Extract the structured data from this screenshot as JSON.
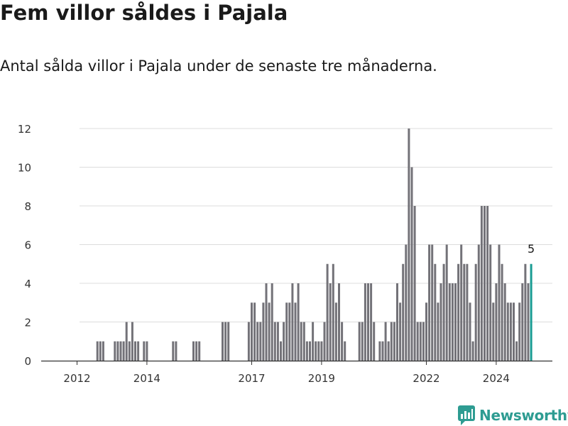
{
  "header": {
    "title": "Fem villor såldes i Pajala",
    "subtitle": "Antal sålda villor i Pajala under de senaste tre månaderna."
  },
  "brand": {
    "name": "Newsworthy",
    "color": "#2e9c92"
  },
  "chart_data": {
    "type": "bar",
    "title": "Fem villor såldes i Pajala",
    "subtitle": "Antal sålda villor i Pajala under de senaste tre månaderna.",
    "xlabel": "",
    "ylabel": "",
    "ylim": [
      0,
      12
    ],
    "yticks": [
      0,
      2,
      4,
      6,
      8,
      10,
      12
    ],
    "grid": true,
    "legend": "none",
    "start_month": "2011-08",
    "x_ticks": [
      {
        "label": "2012",
        "year": 2012,
        "month": 1
      },
      {
        "label": "2014",
        "year": 2014,
        "month": 1
      },
      {
        "label": "2017",
        "year": 2017,
        "month": 1
      },
      {
        "label": "2019",
        "year": 2019,
        "month": 1
      },
      {
        "label": "2022",
        "year": 2022,
        "month": 1
      },
      {
        "label": "2024",
        "year": 2024,
        "month": 1
      }
    ],
    "bar_color": "#737278",
    "highlight_color": "#1a9c93",
    "highlight_label": "5",
    "series": [
      {
        "name": "Antal sålda villor",
        "values": [
          0,
          0,
          0,
          0,
          0,
          0,
          0,
          0,
          0,
          0,
          0,
          0,
          1,
          1,
          1,
          0,
          0,
          0,
          1,
          1,
          1,
          1,
          2,
          1,
          2,
          1,
          1,
          0,
          1,
          1,
          0,
          0,
          0,
          0,
          0,
          0,
          0,
          0,
          1,
          1,
          0,
          0,
          0,
          0,
          0,
          1,
          1,
          1,
          0,
          0,
          0,
          0,
          0,
          0,
          0,
          2,
          2,
          2,
          0,
          0,
          0,
          0,
          0,
          0,
          2,
          3,
          3,
          2,
          2,
          3,
          4,
          3,
          4,
          2,
          2,
          1,
          2,
          3,
          3,
          4,
          3,
          4,
          2,
          2,
          1,
          1,
          2,
          1,
          1,
          1,
          2,
          5,
          4,
          5,
          3,
          4,
          2,
          1,
          0,
          0,
          0,
          0,
          2,
          2,
          4,
          4,
          4,
          2,
          0,
          1,
          1,
          2,
          1,
          2,
          2,
          4,
          3,
          5,
          6,
          12,
          10,
          8,
          2,
          2,
          2,
          3,
          6,
          6,
          5,
          3,
          4,
          5,
          6,
          4,
          4,
          4,
          5,
          6,
          5,
          5,
          3,
          1,
          5,
          6,
          8,
          8,
          8,
          6,
          3,
          4,
          6,
          5,
          4,
          3,
          3,
          3,
          1,
          3,
          4,
          5,
          4,
          5
        ]
      }
    ]
  }
}
